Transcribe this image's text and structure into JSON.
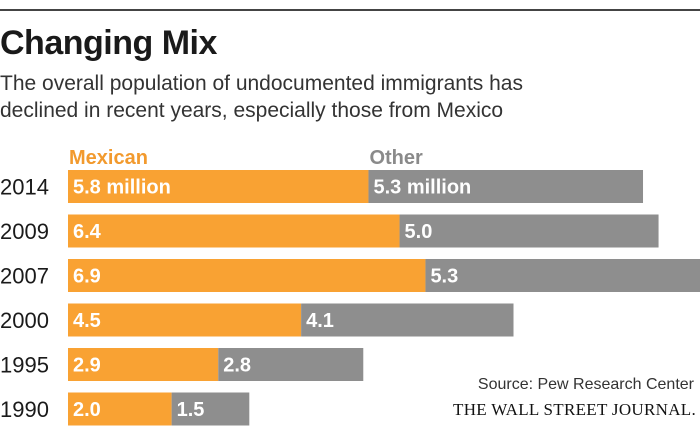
{
  "header": {
    "title": "Changing Mix",
    "subtitle_line1": "The overall population of undocumented immigrants has",
    "subtitle_line2": "declined in recent years, especially those from Mexico"
  },
  "footer": {
    "source": "Source: Pew Research Center",
    "brand": "THE WALL STREET JOURNAL."
  },
  "colors": {
    "mexican": "#F9A233",
    "other": "#8E8E8E",
    "mexican_legend": "#F29A2E",
    "other_legend": "#8A8A8A"
  },
  "chart_data": {
    "type": "bar",
    "orientation": "horizontal",
    "stacked": true,
    "title": "Changing Mix",
    "subtitle": "The overall population of undocumented immigrants has declined in recent years, especially those from Mexico",
    "unit": "million",
    "categories": [
      "2014",
      "2009",
      "2007",
      "2000",
      "1995",
      "1990"
    ],
    "series": [
      {
        "name": "Mexican",
        "values": [
          5.8,
          6.4,
          6.9,
          4.5,
          2.9,
          2.0
        ],
        "labels": [
          "5.8 million",
          "6.4",
          "6.9",
          "4.5",
          "2.9",
          "2.0"
        ]
      },
      {
        "name": "Other",
        "values": [
          5.3,
          5.0,
          5.3,
          4.1,
          2.8,
          1.5
        ],
        "labels": [
          "5.3 million",
          "5.0",
          "5.3",
          "4.1",
          "2.8",
          "1.5"
        ]
      }
    ],
    "xlim": [
      0,
      12.2
    ],
    "grid": false,
    "legend": "top"
  }
}
